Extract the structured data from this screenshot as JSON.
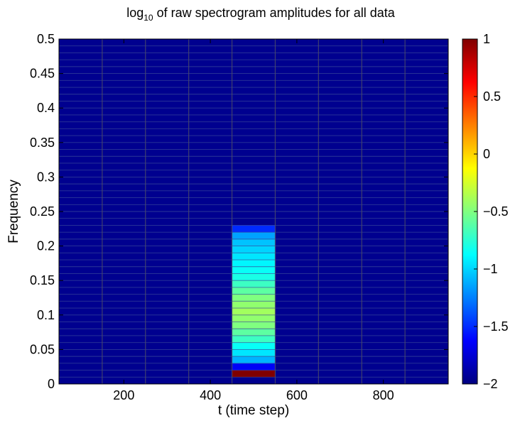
{
  "chart_data": {
    "type": "heatmap",
    "title": {
      "prefix": "log",
      "subscript": "10",
      "suffix": " of raw spectrogram amplitudes for all data"
    },
    "xlabel": "t (time step)",
    "ylabel": "Frequency",
    "xlim": [
      50,
      950
    ],
    "ylim": [
      0,
      0.5
    ],
    "xticks": [
      200,
      400,
      600,
      800
    ],
    "xtick_labels": [
      "200",
      "400",
      "600",
      "800"
    ],
    "yticks": [
      0,
      0.05,
      0.1,
      0.15,
      0.2,
      0.25,
      0.3,
      0.35,
      0.4,
      0.45,
      0.5
    ],
    "ytick_labels": [
      "0",
      "0.05",
      "0.1",
      "0.15",
      "0.2",
      "0.25",
      "0.3",
      "0.35",
      "0.4",
      "0.45",
      "0.5"
    ],
    "time_bin_edges": [
      50,
      150,
      250,
      350,
      450,
      550,
      650,
      750,
      850,
      950
    ],
    "freq_bin_step": 0.01,
    "background_value": -2,
    "colormap": "jet",
    "color_limits": [
      -2,
      1
    ],
    "grid": false,
    "colorbar": {
      "position": "right",
      "ticks": [
        1,
        0.5,
        0,
        -0.5,
        -1,
        -1.5,
        -2
      ],
      "tick_labels": [
        "1",
        "0.5",
        "0",
        "−0.5",
        "−1",
        "−1.5",
        "−2"
      ]
    },
    "active_column": {
      "t_range": [
        450,
        550
      ],
      "cells": [
        {
          "f": [
            0.01,
            0.02
          ],
          "value": 1.0
        },
        {
          "f": [
            0.02,
            0.03
          ],
          "value": -1.65
        },
        {
          "f": [
            0.03,
            0.04
          ],
          "value": -1.1
        },
        {
          "f": [
            0.04,
            0.05
          ],
          "value": -0.95
        },
        {
          "f": [
            0.05,
            0.06
          ],
          "value": -0.85
        },
        {
          "f": [
            0.06,
            0.07
          ],
          "value": -0.7
        },
        {
          "f": [
            0.07,
            0.08
          ],
          "value": -0.6
        },
        {
          "f": [
            0.08,
            0.09
          ],
          "value": -0.5
        },
        {
          "f": [
            0.09,
            0.1
          ],
          "value": -0.45
        },
        {
          "f": [
            0.1,
            0.11
          ],
          "value": -0.4
        },
        {
          "f": [
            0.11,
            0.12
          ],
          "value": -0.45
        },
        {
          "f": [
            0.12,
            0.13
          ],
          "value": -0.5
        },
        {
          "f": [
            0.13,
            0.14
          ],
          "value": -0.6
        },
        {
          "f": [
            0.14,
            0.15
          ],
          "value": -0.7
        },
        {
          "f": [
            0.15,
            0.16
          ],
          "value": -0.8
        },
        {
          "f": [
            0.16,
            0.17
          ],
          "value": -0.85
        },
        {
          "f": [
            0.17,
            0.18
          ],
          "value": -0.9
        },
        {
          "f": [
            0.18,
            0.19
          ],
          "value": -0.95
        },
        {
          "f": [
            0.19,
            0.2
          ],
          "value": -1.0
        },
        {
          "f": [
            0.2,
            0.21
          ],
          "value": -1.05
        },
        {
          "f": [
            0.21,
            0.22
          ],
          "value": -1.15
        },
        {
          "f": [
            0.22,
            0.23
          ],
          "value": -1.5
        }
      ]
    }
  }
}
